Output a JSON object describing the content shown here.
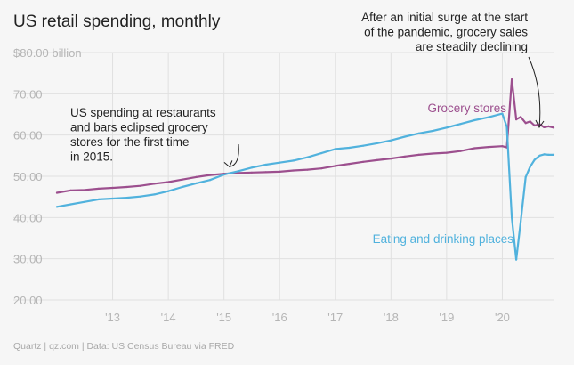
{
  "colors": {
    "background": "#f6f6f6",
    "grid": "#e0e0e0",
    "tick_text": "#b5b5b5",
    "title": "#222222",
    "annotation": "#222222",
    "footer": "#a8a8a8",
    "grocery": "#9c4f8e",
    "eating": "#51b2dd"
  },
  "footer": "Quartz | qz.com | Data: US Census Bureau via FRED",
  "chart_data": {
    "type": "line",
    "title": "US retail spending, monthly",
    "xlabel": "",
    "ylabel": "",
    "ylim": [
      20,
      80
    ],
    "xlim": [
      2012.0,
      2020.92
    ],
    "yticks": [
      {
        "value": 80,
        "label": "$80.00 billion"
      },
      {
        "value": 70,
        "label": "70.00"
      },
      {
        "value": 60,
        "label": "60.00"
      },
      {
        "value": 50,
        "label": "50.00"
      },
      {
        "value": 40,
        "label": "40.00"
      },
      {
        "value": 30,
        "label": "30.00"
      },
      {
        "value": 20,
        "label": "20.00"
      }
    ],
    "xticks": [
      {
        "value": 2013,
        "label": "'13"
      },
      {
        "value": 2014,
        "label": "'14"
      },
      {
        "value": 2015,
        "label": "'15"
      },
      {
        "value": 2016,
        "label": "'16"
      },
      {
        "value": 2017,
        "label": "'17"
      },
      {
        "value": 2018,
        "label": "'18"
      },
      {
        "value": 2019,
        "label": "'19"
      },
      {
        "value": 2020,
        "label": "'20"
      }
    ],
    "grid": true,
    "series": [
      {
        "name": "Grocery stores",
        "color": "#9c4f8e",
        "x": [
          2012.0,
          2012.25,
          2012.5,
          2012.75,
          2013.0,
          2013.25,
          2013.5,
          2013.75,
          2014.0,
          2014.25,
          2014.5,
          2014.75,
          2015.0,
          2015.25,
          2015.5,
          2015.75,
          2016.0,
          2016.25,
          2016.5,
          2016.75,
          2017.0,
          2017.25,
          2017.5,
          2017.75,
          2018.0,
          2018.25,
          2018.5,
          2018.75,
          2019.0,
          2019.25,
          2019.5,
          2019.75,
          2020.0,
          2020.08,
          2020.17,
          2020.25,
          2020.33,
          2020.42,
          2020.5,
          2020.58,
          2020.67,
          2020.75,
          2020.83,
          2020.92
        ],
        "values": [
          46.0,
          46.6,
          46.7,
          47.0,
          47.2,
          47.4,
          47.7,
          48.2,
          48.6,
          49.2,
          49.8,
          50.3,
          50.6,
          50.8,
          50.9,
          51.0,
          51.1,
          51.4,
          51.6,
          51.9,
          52.5,
          53.0,
          53.5,
          53.9,
          54.3,
          54.8,
          55.2,
          55.5,
          55.7,
          56.1,
          56.8,
          57.1,
          57.3,
          57.0,
          73.5,
          63.8,
          64.4,
          62.9,
          63.3,
          62.3,
          62.6,
          61.9,
          62.1,
          61.8
        ]
      },
      {
        "name": "Eating and drinking places",
        "color": "#51b2dd",
        "x": [
          2012.0,
          2012.25,
          2012.5,
          2012.75,
          2013.0,
          2013.25,
          2013.5,
          2013.75,
          2014.0,
          2014.25,
          2014.5,
          2014.75,
          2015.0,
          2015.25,
          2015.5,
          2015.75,
          2016.0,
          2016.25,
          2016.5,
          2016.75,
          2017.0,
          2017.25,
          2017.5,
          2017.75,
          2018.0,
          2018.25,
          2018.5,
          2018.75,
          2019.0,
          2019.25,
          2019.5,
          2019.75,
          2020.0,
          2020.08,
          2020.17,
          2020.25,
          2020.33,
          2020.42,
          2020.5,
          2020.58,
          2020.67,
          2020.75,
          2020.83,
          2020.92
        ],
        "values": [
          42.6,
          43.2,
          43.8,
          44.4,
          44.6,
          44.8,
          45.1,
          45.6,
          46.4,
          47.4,
          48.3,
          49.1,
          50.4,
          51.2,
          52.1,
          52.8,
          53.3,
          53.8,
          54.6,
          55.6,
          56.6,
          56.9,
          57.4,
          58.0,
          58.7,
          59.6,
          60.4,
          61.0,
          61.8,
          62.7,
          63.6,
          64.3,
          65.2,
          62.0,
          40.0,
          29.8,
          39.0,
          49.8,
          52.3,
          54.0,
          55.0,
          55.3,
          55.2,
          55.2
        ]
      }
    ],
    "series_labels": [
      {
        "series": "Grocery stores",
        "text": "Grocery stores"
      },
      {
        "series": "Eating and drinking places",
        "text": "Eating and drinking places"
      }
    ],
    "annotations": [
      {
        "lines": [
          "US spending at restaurants",
          "and bars eclipsed grocery",
          "stores for the first time",
          "in 2015."
        ],
        "points_to": {
          "x": 2015.1,
          "y": 51.0
        }
      },
      {
        "lines": [
          "After an initial surge at the start",
          "of the pandemic, grocery sales",
          "are steadily declining"
        ],
        "points_to": {
          "x": 2020.55,
          "y": 64.5
        }
      }
    ]
  }
}
